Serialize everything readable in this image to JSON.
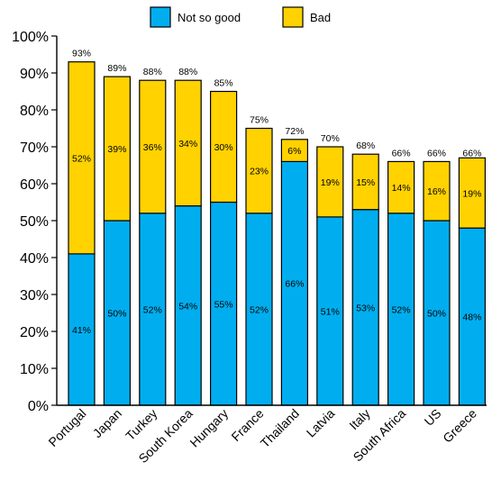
{
  "chart_data": {
    "type": "bar",
    "stacked": true,
    "categories": [
      "Portugal",
      "Japan",
      "Turkey",
      "South Korea",
      "Hungary",
      "France",
      "Thailand",
      "Latvia",
      "Italy",
      "South Africa",
      "US",
      "Greece"
    ],
    "series": [
      {
        "name": "Not so good",
        "color": "#00aeef",
        "values": [
          41,
          50,
          52,
          54,
          55,
          52,
          66,
          51,
          53,
          52,
          50,
          48
        ],
        "labels": [
          "41%",
          "50%",
          "52%",
          "54%",
          "55%",
          "52%",
          "66%",
          "51%",
          "53%",
          "52%",
          "50%",
          "48%"
        ]
      },
      {
        "name": "Bad",
        "color": "#ffd200",
        "values": [
          52,
          39,
          36,
          34,
          30,
          23,
          6,
          19,
          15,
          14,
          16,
          19
        ],
        "labels": [
          "52%",
          "39%",
          "36%",
          "34%",
          "30%",
          "23%",
          "6%",
          "19%",
          "15%",
          "14%",
          "16%",
          "19%"
        ]
      }
    ],
    "totals": [
      93,
      89,
      88,
      88,
      85,
      75,
      72,
      70,
      68,
      66,
      66,
      66
    ],
    "total_labels": [
      "93%",
      "89%",
      "88%",
      "88%",
      "85%",
      "75%",
      "72%",
      "70%",
      "68%",
      "66%",
      "66%",
      "66%"
    ],
    "ylim": [
      0,
      100
    ],
    "yticks": [
      0,
      10,
      20,
      30,
      40,
      50,
      60,
      70,
      80,
      90,
      100
    ],
    "ytick_labels": [
      "0%",
      "10%",
      "20%",
      "30%",
      "40%",
      "50%",
      "60%",
      "70%",
      "80%",
      "90%",
      "100%"
    ],
    "legend_position": "top",
    "grid": false,
    "title": "",
    "xlabel": "",
    "ylabel": ""
  }
}
